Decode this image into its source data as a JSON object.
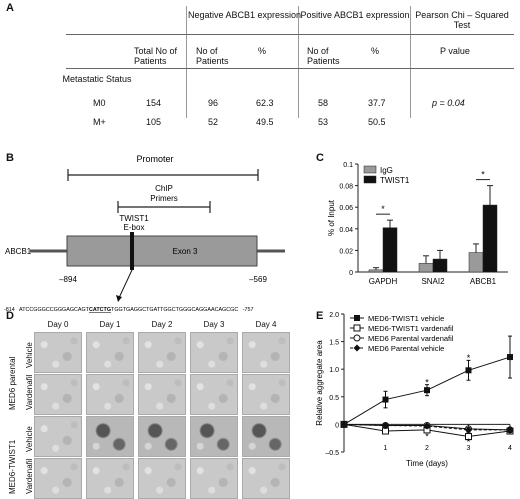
{
  "panel_a": {
    "letter": "A",
    "headers": {
      "negative": "Negative ABCB1 expression",
      "positive": "Positive ABCB1 expression",
      "pearson": "Pearson Chi – Squared Test",
      "total": "Total No of Patients",
      "neg_no": "No of Patients",
      "neg_pct": "%",
      "pos_no": "No of Patients",
      "pos_pct": "%",
      "pvalue": "P value"
    },
    "row_group": "Metastatic Status",
    "rows": [
      {
        "status": "M0",
        "total": "154",
        "neg_no": "96",
        "neg_pct": "62.3",
        "pos_no": "58",
        "pos_pct": "37.7",
        "p": "p = 0.04"
      },
      {
        "status": "M+",
        "total": "105",
        "neg_no": "52",
        "neg_pct": "49.5",
        "pos_no": "53",
        "pos_pct": "50.5",
        "p": ""
      }
    ]
  },
  "panel_b": {
    "letter": "B",
    "promoter": "Promoter",
    "chip": "ChIP",
    "primers": "Primers",
    "twist": "TWIST1",
    "ebox": "E-box",
    "gene": "ABCB1",
    "exon": "Exon 3",
    "left_pos": "–894",
    "right_pos": "–569",
    "seq_start": "-814",
    "seq_pre": "ATCCGGGCCGGGAGCAGT",
    "seq_box": "CATCTG",
    "seq_post": "TGGTGAGGCTGATTGGCTGGGCAGGAACAGCGC",
    "seq_end": "-757"
  },
  "panel_c": {
    "letter": "C",
    "chart_data": {
      "type": "bar",
      "categories": [
        "GAPDH",
        "SNAI2",
        "ABCB1"
      ],
      "series": [
        {
          "name": "IgG",
          "values": [
            0.002,
            0.008,
            0.018
          ],
          "errors": [
            0.002,
            0.007,
            0.008
          ],
          "color": "#9a9a9a"
        },
        {
          "name": "TWIST1",
          "values": [
            0.041,
            0.012,
            0.062
          ],
          "errors": [
            0.007,
            0.008,
            0.018
          ],
          "color": "#111111"
        }
      ],
      "ylabel": "% of Input",
      "ylim": [
        0,
        0.1
      ],
      "yticks": [
        "0",
        "0.02",
        "0.04",
        "0.06",
        "0.08",
        "0.1"
      ],
      "significance": [
        "*",
        "",
        "*"
      ],
      "legend": "top-left"
    }
  },
  "panel_d": {
    "letter": "D",
    "days": [
      "Day 0",
      "Day 1",
      "Day 2",
      "Day 3",
      "Day 4"
    ],
    "groups": [
      "MED6 parental",
      "MED6-TWIST1"
    ],
    "rows": [
      "Vehicle",
      "Vardenafil",
      "Vehicle",
      "Vardenafil"
    ]
  },
  "panel_e": {
    "letter": "E",
    "chart_data": {
      "type": "line",
      "x": [
        0,
        1,
        2,
        3,
        4
      ],
      "series": [
        {
          "name": "MED6-TWIST1 vehicle",
          "values": [
            0,
            0.45,
            0.62,
            0.98,
            1.22
          ],
          "errors": [
            0,
            0.15,
            0.1,
            0.18,
            0.38
          ],
          "marker": "filled-square",
          "dash": false
        },
        {
          "name": "MED6-TWIST1 vardenafil",
          "values": [
            0,
            -0.12,
            -0.1,
            -0.22,
            -0.12
          ],
          "errors": [
            0,
            0.04,
            0.05,
            0.06,
            0.04
          ],
          "marker": "open-square",
          "dash": false
        },
        {
          "name": "MED6 Parental vardenafil",
          "values": [
            0,
            -0.02,
            -0.02,
            -0.08,
            -0.1
          ],
          "errors": [
            0,
            0.03,
            0.03,
            0.04,
            0.04
          ],
          "marker": "open-circle",
          "dash": false
        },
        {
          "name": "MED6 Parental vehicle",
          "values": [
            0,
            -0.02,
            -0.03,
            -0.1,
            -0.1
          ],
          "errors": [
            0,
            0.03,
            0.03,
            0.04,
            0.04
          ],
          "marker": "filled-diamond",
          "dash": true
        }
      ],
      "xlabel": "Time (days)",
      "ylabel": "Relative aggregate area",
      "xticks": [
        "1",
        "2",
        "3",
        "4"
      ],
      "yticks": [
        "–0.5",
        "0",
        "0.5",
        "1.0",
        "1.5",
        "2.0"
      ],
      "ylim": [
        -0.5,
        2.0
      ],
      "annotations": [
        "*",
        "*",
        "*",
        "*"
      ],
      "legend": "top-left"
    }
  }
}
